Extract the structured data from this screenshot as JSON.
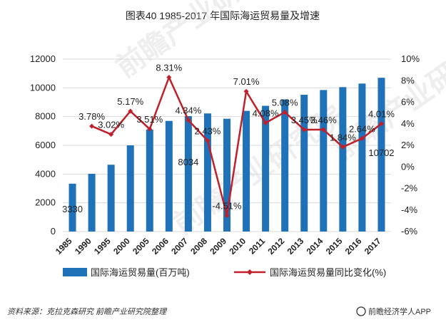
{
  "chart_data": {
    "type": "bar+line",
    "title": "图表40  1985-2017 年国际海运贸易量及增速",
    "categories": [
      "1985",
      "1990",
      "1995",
      "2000",
      "2005",
      "2006",
      "2007",
      "2008",
      "2009",
      "2010",
      "2011",
      "2012",
      "2013",
      "2014",
      "2015",
      "2016",
      "2017"
    ],
    "bar_series": {
      "name": "国际海运贸易量(百万吨)",
      "color": "#1f72b8",
      "values": [
        3330,
        4020,
        4650,
        6000,
        7100,
        7700,
        8034,
        8220,
        7850,
        8400,
        8750,
        9200,
        9520,
        9850,
        10050,
        10300,
        10702
      ]
    },
    "line_series": {
      "name": "国际海运贸易量同比变化(%)",
      "color": "#c0202a",
      "values": [
        null,
        3.78,
        3.02,
        5.17,
        3.51,
        8.31,
        4.34,
        2.43,
        -4.51,
        7.01,
        4.08,
        5.08,
        3.45,
        3.46,
        1.84,
        2.64,
        4.01
      ]
    },
    "bar_labels": [
      {
        "category": "1985",
        "text": "3330"
      },
      {
        "category": "2007",
        "text": "8034"
      },
      {
        "category": "2017",
        "text": "10702"
      }
    ],
    "line_labels": [
      "",
      "3.78%",
      "3.02%",
      "5.17%",
      "3.51%",
      "8.31%",
      "4.34%",
      "2.43%",
      "-4.51%",
      "7.01%",
      "4.08%",
      "5.08%",
      "3.45%",
      "3.46%",
      "1.84%",
      "2.64%",
      "4.01%"
    ],
    "y_left": {
      "min": 0,
      "max": 12000,
      "ticks": [
        "0",
        "2000",
        "4000",
        "6000",
        "8000",
        "10000",
        "12000"
      ]
    },
    "y_right": {
      "min": -6,
      "max": 10,
      "ticks": [
        "-6%",
        "-4%",
        "-2%",
        "0%",
        "2%",
        "4%",
        "6%",
        "8%",
        "10%"
      ]
    },
    "grid": true,
    "legend_position": "bottom"
  },
  "source_text": "资料来源：克拉克森研究 前瞻产业研究院整理",
  "brand_text": "前瞻经济学人APP",
  "watermark_text": "前瞻产业研究院"
}
